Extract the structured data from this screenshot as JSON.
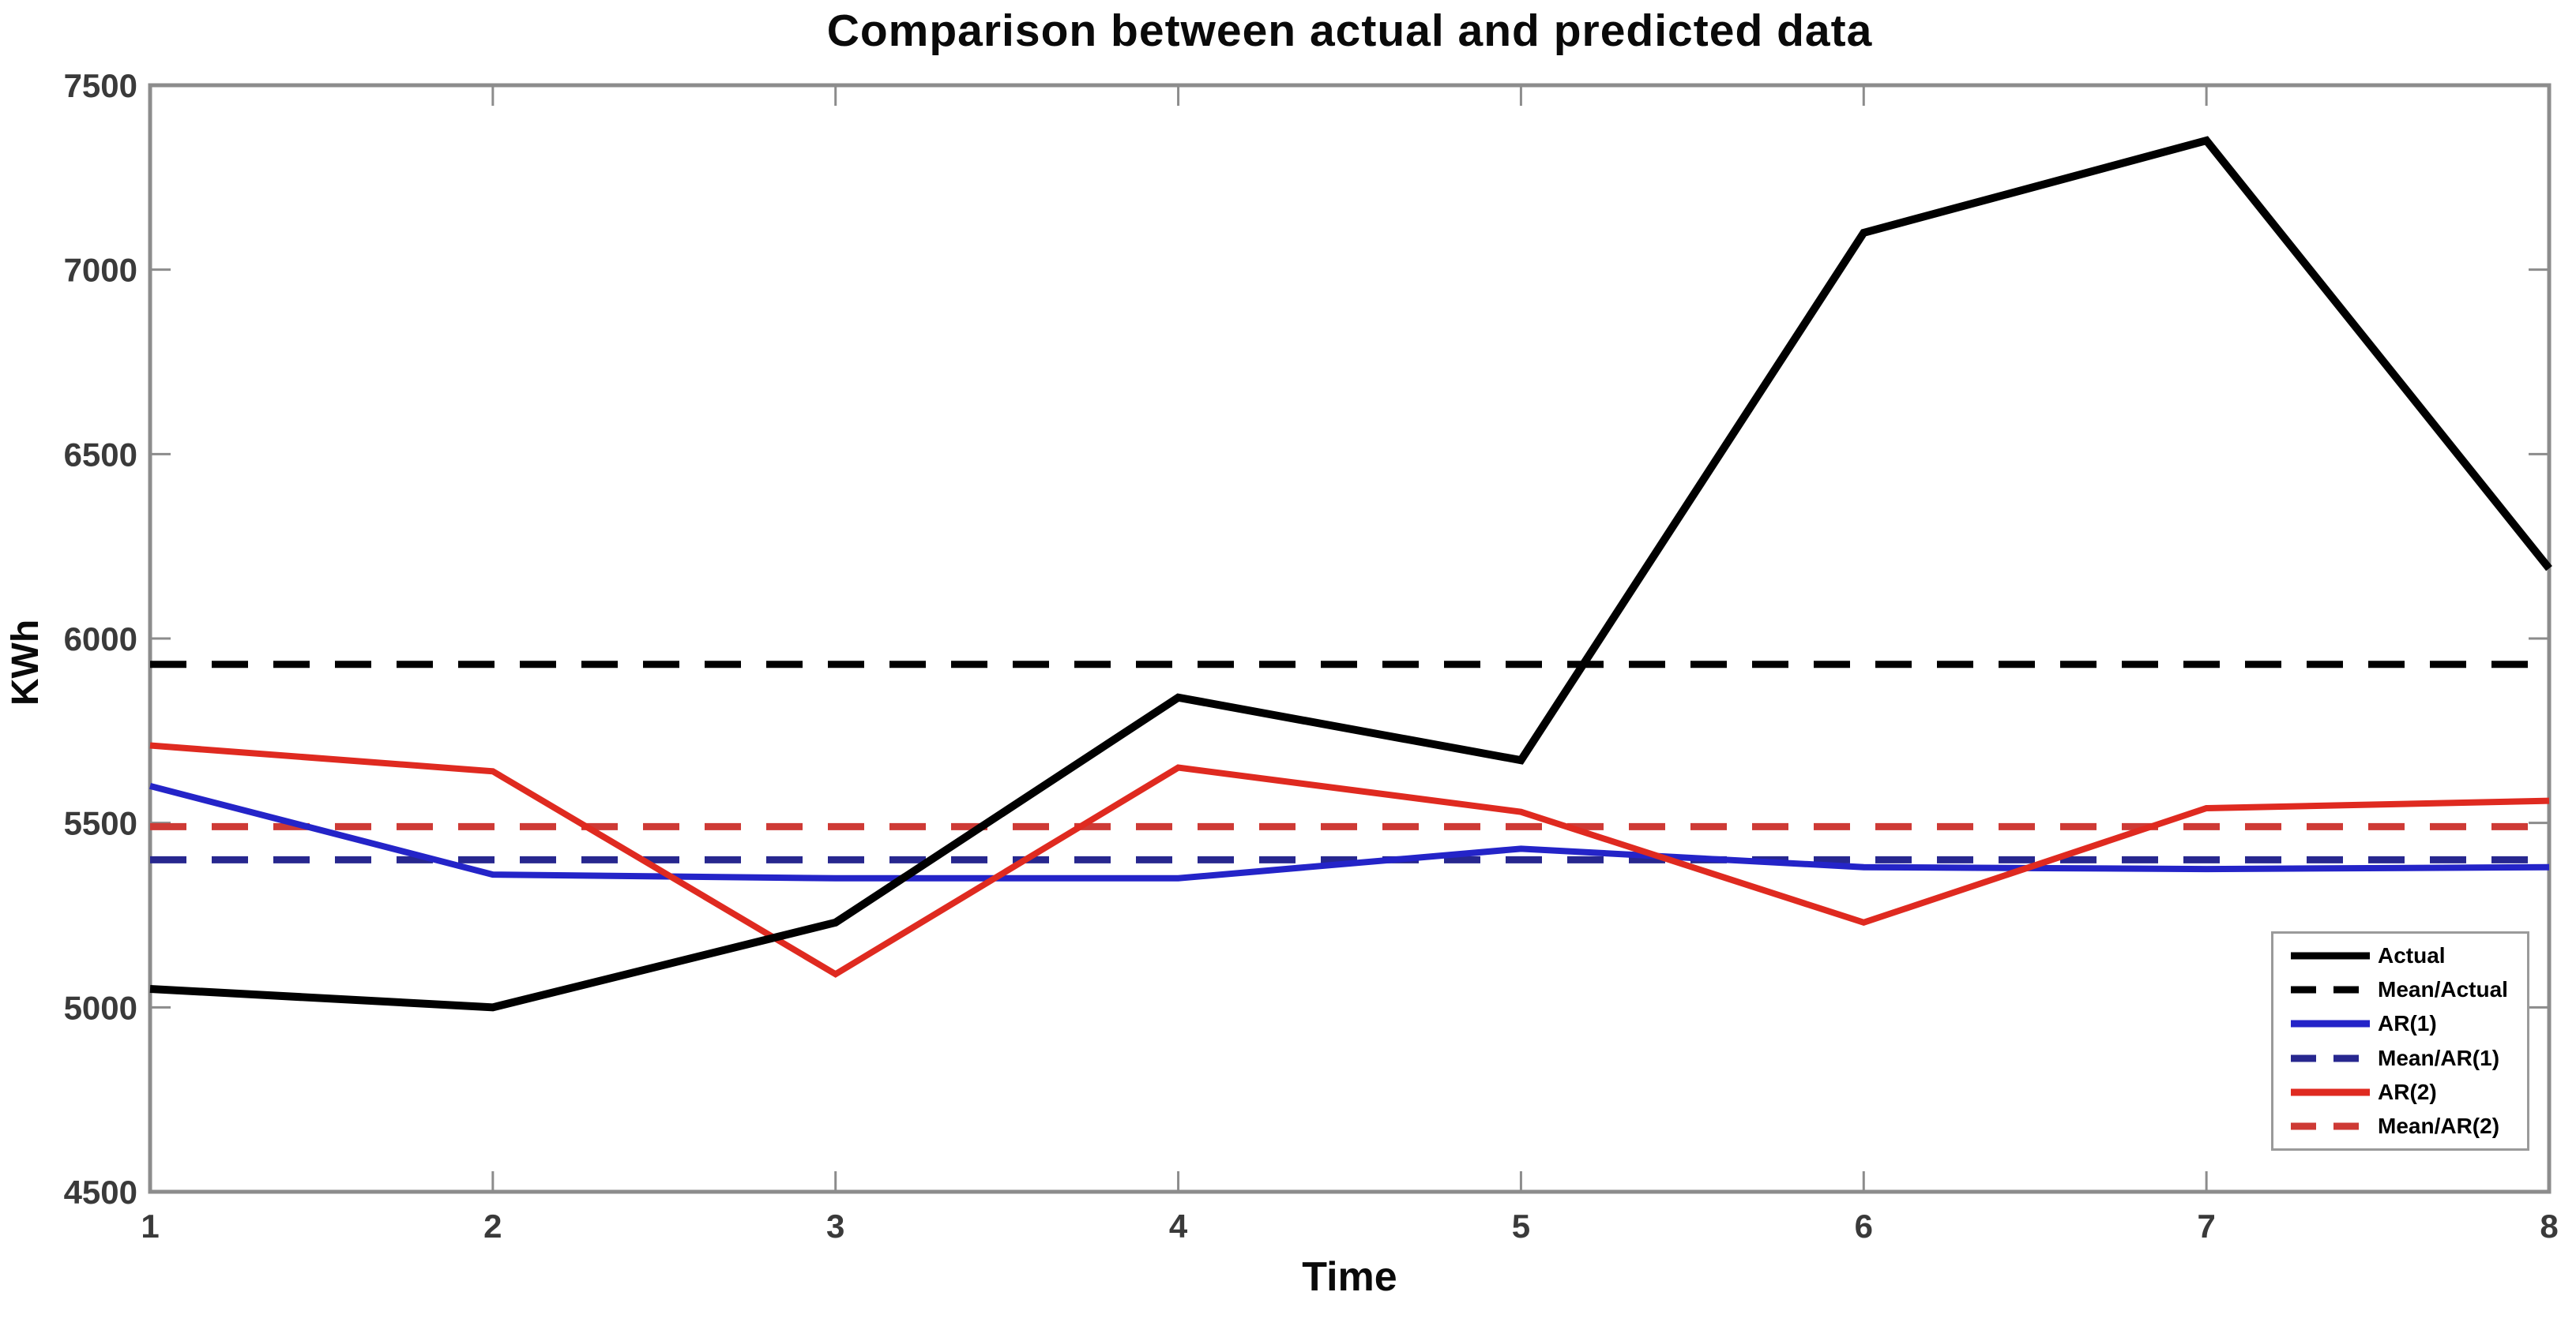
{
  "figure": {
    "background": "#ffffff",
    "axis_color": "#8c8c8c",
    "tick_label_color": "#3a3a3a",
    "tick_length": 26
  },
  "chart_data": {
    "type": "line",
    "title": "Comparison between actual and predicted data",
    "xlabel": "Time",
    "ylabel": "KWh",
    "x": [
      1,
      2,
      3,
      4,
      5,
      6,
      7,
      8
    ],
    "xlim": [
      1,
      8
    ],
    "ylim": [
      4500,
      7500
    ],
    "xticks": [
      1,
      2,
      3,
      4,
      5,
      6,
      7,
      8
    ],
    "yticks": [
      4500,
      5000,
      5500,
      6000,
      6500,
      7000,
      7500
    ],
    "grid": false,
    "legend_position": "lower-right",
    "series": [
      {
        "name": "Actual",
        "kind": "line",
        "style": "solid",
        "color": "#000000",
        "width": 10,
        "values": [
          5050,
          5000,
          5230,
          5840,
          5670,
          7100,
          7350,
          6190
        ]
      },
      {
        "name": "Mean/Actual",
        "kind": "hline",
        "style": "dashed",
        "color": "#000000",
        "width": 9,
        "value": 5930
      },
      {
        "name": "AR(1)",
        "kind": "line",
        "style": "solid",
        "color": "#2424C8",
        "width": 8,
        "values": [
          5600,
          5360,
          5350,
          5350,
          5430,
          5380,
          5375,
          5380
        ]
      },
      {
        "name": "Mean/AR(1)",
        "kind": "hline",
        "style": "dashed",
        "color": "#27278F",
        "width": 9,
        "value": 5400
      },
      {
        "name": "AR(2)",
        "kind": "line",
        "style": "solid",
        "color": "#DF2A20",
        "width": 8,
        "values": [
          5710,
          5640,
          5090,
          5650,
          5530,
          5230,
          5540,
          5560
        ]
      },
      {
        "name": "Mean/AR(2)",
        "kind": "hline",
        "style": "dashed",
        "color": "#CE3A35",
        "width": 9,
        "value": 5490
      }
    ]
  }
}
